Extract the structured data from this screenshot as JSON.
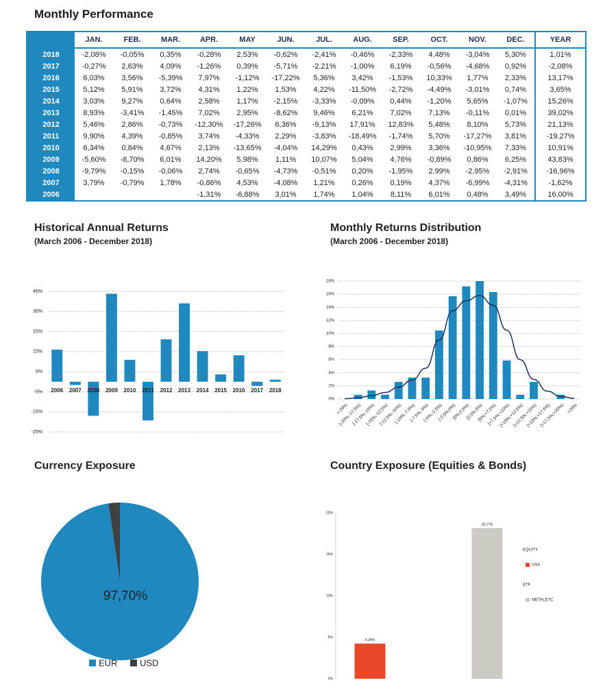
{
  "title": "Monthly Performance",
  "table": {
    "header": [
      null,
      "JAN.",
      "FEB.",
      "MAR.",
      "APR.",
      "MAY",
      "JUN.",
      "JUL.",
      "AUG.",
      "SEP.",
      "OCT.",
      "NOV.",
      "DEC.",
      "YEAR"
    ],
    "rows": [
      [
        "2018",
        "-2,08%",
        "-0,05%",
        "0,35%",
        "-0,28%",
        "2,53%",
        "-0,62%",
        "-2,41%",
        "-0,46%",
        "-2,33%",
        "4,48%",
        "-3,04%",
        "5,30%",
        "1,01%"
      ],
      [
        "2017",
        "-0,27%",
        "2,63%",
        "4,09%",
        "-1,26%",
        "0,39%",
        "-5,71%",
        "-2,21%",
        "-1,00%",
        "6,19%",
        "-0,56%",
        "-4,68%",
        "0,92%",
        "-2,08%"
      ],
      [
        "2016",
        "6,03%",
        "3,56%",
        "-5,39%",
        "7,97%",
        "-1,12%",
        "-17,22%",
        "5,36%",
        "3,42%",
        "-1,53%",
        "10,33%",
        "1,77%",
        "2,33%",
        "13,17%"
      ],
      [
        "2015",
        "5,12%",
        "5,91%",
        "3,72%",
        "4,31%",
        "1,22%",
        "1,53%",
        "4,22%",
        "-11,50%",
        "-2,72%",
        "-4,49%",
        "-3,01%",
        "0,74%",
        "3,65%"
      ],
      [
        "2014",
        "3,03%",
        "9,27%",
        "0,64%",
        "2,58%",
        "1,17%",
        "-2,15%",
        "-3,33%",
        "-0,09%",
        "0,44%",
        "-1,20%",
        "5,65%",
        "-1,07%",
        "15,26%"
      ],
      [
        "2013",
        "8,93%",
        "-3,41%",
        "-1,45%",
        "7,02%",
        "2,95%",
        "-8,62%",
        "9,46%",
        "6,21%",
        "7,02%",
        "7,13%",
        "-0,11%",
        "0,01%",
        "39,02%"
      ],
      [
        "2012",
        "5,46%",
        "2,86%",
        "-0,73%",
        "-12,30%",
        "-17,26%",
        "6,36%",
        "-9,13%",
        "17,91%",
        "12,83%",
        "5,48%",
        "8,10%",
        "5,73%",
        "21,13%"
      ],
      [
        "2011",
        "9,90%",
        "4,39%",
        "-0,85%",
        "3,74%",
        "-4,33%",
        "2,29%",
        "-3,83%",
        "-18,49%",
        "-1,74%",
        "5,70%",
        "-17,27%",
        "3,81%",
        "-19,27%"
      ],
      [
        "2010",
        "6,34%",
        "0,84%",
        "4,67%",
        "2,13%",
        "-13,65%",
        "-4,04%",
        "14,29%",
        "0,43%",
        "2,99%",
        "3,36%",
        "-10,95%",
        "7,33%",
        "10,91%"
      ],
      [
        "2009",
        "-5,60%",
        "-8,70%",
        "6,01%",
        "14,20%",
        "5,98%",
        "1,11%",
        "10,07%",
        "5,04%",
        "4,76%",
        "-0,89%",
        "0,86%",
        "6,25%",
        "43,83%"
      ],
      [
        "2008",
        "-9,79%",
        "-0,15%",
        "-0,06%",
        "2,74%",
        "-0,65%",
        "-4,73%",
        "-0,51%",
        "0,20%",
        "-1,95%",
        "2,99%",
        "-2,95%",
        "-2,91%",
        "-16,96%"
      ],
      [
        "2007",
        "3,79%",
        "-0,79%",
        "1,78%",
        "-0,86%",
        "4,53%",
        "-4,08%",
        "1,21%",
        "0,26%",
        "0,19%",
        "4,37%",
        "-6,99%",
        "-4,31%",
        "-1,62%"
      ],
      [
        "2006",
        null,
        null,
        null,
        "-1,31%",
        "-6,88%",
        "3,01%",
        "1,74%",
        "1,04%",
        "8,11%",
        "6,01%",
        "0,48%",
        "3,49%",
        "16,00%"
      ]
    ]
  },
  "chart_data": [
    {
      "type": "bar",
      "title": "Historical Annual Returns",
      "subtitle": "(March 2006 - December 2018)",
      "categories": [
        "2006",
        "2007",
        "2008",
        "2009",
        "2010",
        "2011",
        "2012",
        "2013",
        "2014",
        "2015",
        "2016",
        "2017",
        "2018"
      ],
      "values": [
        16.0,
        -1.62,
        -16.96,
        43.83,
        10.91,
        -19.27,
        21.13,
        39.02,
        15.26,
        3.65,
        13.17,
        -2.08,
        1.01
      ],
      "color": "#1f88bf",
      "ylim": [
        -25,
        45
      ],
      "yticks": [
        {
          "value": -25,
          "label": "-25%"
        },
        {
          "value": -15,
          "label": "-15%"
        },
        {
          "value": -5,
          "label": "-5%"
        },
        {
          "value": 5,
          "label": "5%"
        },
        {
          "value": 15,
          "label": "15%"
        },
        {
          "value": 25,
          "label": "25%"
        },
        {
          "value": 35,
          "label": "35%"
        },
        {
          "value": 45,
          "label": "45%"
        }
      ],
      "grid": true
    },
    {
      "type": "bar",
      "title": "Monthly Returns Distribution",
      "subtitle": "(March 2006 - December 2018)",
      "categories": [
        "<-20%",
        "[-20%;-17,5%)",
        "[-17,5%;-15%)",
        "[-15%;-12,5%)",
        "[-12,5%;-10%)",
        "[-10%;-7,5%)",
        "[-7,5%;-5%)",
        "[-5%;-2,5%)",
        "[-2,5%;0%)",
        "[0%;2,5%)",
        "[2,5%;5%)",
        "[5%;+7,5%)",
        "[+7,5%;+10%)",
        "[+10%;+12,5%)",
        "[+12,5%;+15%)",
        "[+15%;+17,5%)",
        "[+17,5%;+20%)",
        ">20%"
      ],
      "values": [
        0,
        0.65,
        1.31,
        0.65,
        2.61,
        3.27,
        3.27,
        10.46,
        15.69,
        17.2,
        17.99,
        16.34,
        5.88,
        0.65,
        2.61,
        0,
        0.65,
        0
      ],
      "curve": [
        0.05,
        0.2,
        0.5,
        1.0,
        1.8,
        2.9,
        4.7,
        9.0,
        13.5,
        15.0,
        15.8,
        14.3,
        10.5,
        6.0,
        3.0,
        1.2,
        0.4,
        0.1
      ],
      "color": "#1f88bf",
      "curve_color": "#1a2f5a",
      "ylim": [
        0,
        18
      ],
      "yticks": [
        {
          "value": 0,
          "label": "0%"
        },
        {
          "value": 2,
          "label": "2%"
        },
        {
          "value": 4,
          "label": "4%"
        },
        {
          "value": 6,
          "label": "6%"
        },
        {
          "value": 8,
          "label": "8%"
        },
        {
          "value": 10,
          "label": "10%"
        },
        {
          "value": 12,
          "label": "12%"
        },
        {
          "value": 14,
          "label": "14%"
        },
        {
          "value": 16,
          "label": "16%"
        },
        {
          "value": 18,
          "label": "18%"
        }
      ],
      "grid": true
    },
    {
      "type": "pie",
      "title": "Currency Exposure",
      "categories": [
        "EUR",
        "USD"
      ],
      "values": [
        97.7,
        2.3
      ],
      "value_labels": [
        "97,70%",
        null
      ],
      "colors": [
        "#1f88bf",
        "#404040"
      ]
    },
    {
      "type": "bar",
      "title": "Country Exposure (Equities & Bonds)",
      "series": [
        {
          "group": "EQUITY",
          "name": "USA",
          "color": "#e8472a",
          "values": [
            4.24
          ],
          "value_labels": [
            "4,24%"
          ]
        },
        {
          "group": "ETF",
          "name": "METALETC",
          "color": "#cbcbc3",
          "values": [
            18.17
          ],
          "value_labels": [
            "18,17%"
          ]
        }
      ],
      "ylim": [
        0,
        20
      ],
      "yticks": [
        {
          "value": 0,
          "label": "0%"
        },
        {
          "value": 5,
          "label": "5%"
        },
        {
          "value": 10,
          "label": "10%"
        },
        {
          "value": 15,
          "label": "15%"
        },
        {
          "value": 20,
          "label": "20%"
        }
      ],
      "grid": false
    }
  ]
}
